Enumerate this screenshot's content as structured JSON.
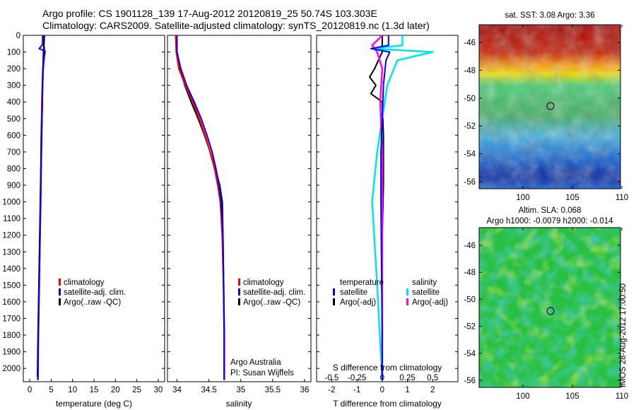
{
  "header": {
    "line1": "Argo profile: CS 1901128_139 17-Aug-2012 20120819_25 50.74S 103.303E",
    "line2": "Climatology: CARS2009. Satellite-adjusted climatology: synTS_20120819.nc (1.3d later)"
  },
  "colors": {
    "climatology": "#ff0000",
    "satellite": "#0000ff",
    "argo": "#000000",
    "satellite_s": "#00e5e5",
    "argo_s": "#ff00ff"
  },
  "depth_ticks": [
    "0",
    "100",
    "200",
    "300",
    "400",
    "500",
    "600",
    "700",
    "800",
    "900",
    "1000",
    "1100",
    "1200",
    "1300",
    "1400",
    "1500",
    "1600",
    "1700",
    "1800",
    "1900",
    "2000"
  ],
  "panels": {
    "temperature": {
      "xlabel": "temperature (deg C)",
      "xticks": [
        "0",
        "5",
        "10",
        "15",
        "20",
        "25",
        "30"
      ],
      "legend": [
        "climatology",
        "satellite-adj. clim.",
        "Argo(..raw -QC)"
      ]
    },
    "salinity": {
      "xlabel": "salinity",
      "xticks": [
        "34",
        "34.5",
        "35",
        "35.5",
        "36"
      ],
      "legend": [
        "climatology",
        "satellite-adj. clim.",
        "Argo(..raw -QC)"
      ],
      "credit1": "Argo Australia",
      "credit2": "PI: Susan Wijffels"
    },
    "difference": {
      "xlabel": "T difference from climatology",
      "xticks": [
        "-2",
        "-1",
        "0",
        "1",
        "2"
      ],
      "s_label": "S difference from climatology",
      "s_ticks": [
        "-0.5",
        "-0.25",
        "0",
        "0.25",
        "0.5"
      ],
      "legend_t_head": "temperature",
      "legend_s_head": "salinity",
      "legend_t": [
        "satellite",
        "Argo(-adj)"
      ],
      "legend_s": [
        "satellite",
        "Argo(-adj)"
      ]
    }
  },
  "maps": {
    "sst_title": "sat. SST: 3.08 Argo: 3.36",
    "sla_title1": "Altim. SLA: 0.068",
    "sla_title2": "Argo h1000: -0.0079 h2000: -0.014",
    "yticks": [
      "-46",
      "-48",
      "-50",
      "-52",
      "-54",
      "-56"
    ],
    "xticks": [
      "100",
      "105",
      "110"
    ]
  },
  "stamp": "IMOS 28-Aug-2012 17:00:50",
  "chart_data": {
    "type": "line",
    "ylim": [
      0,
      2080
    ],
    "temperature": {
      "xlim": [
        -1.5,
        31.5
      ],
      "climatology": [
        [
          3.4,
          0
        ],
        [
          3.3,
          60
        ],
        [
          3.5,
          100
        ],
        [
          3.1,
          200
        ],
        [
          2.9,
          350
        ],
        [
          2.7,
          600
        ],
        [
          2.6,
          900
        ],
        [
          2.4,
          1200
        ],
        [
          2.2,
          1500
        ],
        [
          2.0,
          1800
        ],
        [
          1.9,
          2070
        ]
      ],
      "satellite": [
        [
          3.0,
          0
        ],
        [
          3.0,
          55
        ],
        [
          2.2,
          80
        ],
        [
          3.6,
          95
        ],
        [
          3.2,
          150
        ],
        [
          3.0,
          300
        ],
        [
          2.8,
          600
        ],
        [
          2.6,
          900
        ],
        [
          2.4,
          1200
        ],
        [
          2.2,
          1500
        ],
        [
          2.0,
          1800
        ],
        [
          1.9,
          2070
        ]
      ],
      "argo": [
        [
          3.4,
          0
        ],
        [
          3.2,
          100
        ],
        [
          3.0,
          250
        ],
        [
          2.9,
          450
        ],
        [
          2.7,
          650
        ],
        [
          2.5,
          950
        ],
        [
          2.3,
          1250
        ],
        [
          2.1,
          1550
        ],
        [
          1.9,
          1850
        ],
        [
          1.8,
          2050
        ]
      ]
    },
    "salinity": {
      "xlim": [
        33.85,
        36.1
      ],
      "climatology": [
        [
          33.98,
          0
        ],
        [
          33.99,
          100
        ],
        [
          34.03,
          200
        ],
        [
          34.13,
          300
        ],
        [
          34.25,
          400
        ],
        [
          34.35,
          500
        ],
        [
          34.44,
          600
        ],
        [
          34.52,
          700
        ],
        [
          34.59,
          800
        ],
        [
          34.64,
          900
        ],
        [
          34.68,
          1000
        ],
        [
          34.71,
          1200
        ],
        [
          34.73,
          1500
        ],
        [
          34.74,
          1800
        ],
        [
          34.74,
          2070
        ]
      ],
      "satellite": [
        [
          34.0,
          0
        ],
        [
          34.0,
          100
        ],
        [
          34.06,
          200
        ],
        [
          34.15,
          300
        ],
        [
          34.27,
          400
        ],
        [
          34.38,
          500
        ],
        [
          34.47,
          600
        ],
        [
          34.55,
          700
        ],
        [
          34.61,
          800
        ],
        [
          34.66,
          900
        ],
        [
          34.69,
          1000
        ],
        [
          34.72,
          1200
        ],
        [
          34.73,
          1500
        ],
        [
          34.74,
          1800
        ],
        [
          34.74,
          2070
        ]
      ],
      "argo": [
        [
          33.98,
          0
        ],
        [
          34.0,
          100
        ],
        [
          34.05,
          200
        ],
        [
          34.12,
          300
        ],
        [
          34.22,
          400
        ],
        [
          34.33,
          500
        ],
        [
          34.43,
          600
        ],
        [
          34.52,
          700
        ],
        [
          34.6,
          800
        ],
        [
          34.67,
          900
        ],
        [
          34.71,
          1000
        ],
        [
          34.72,
          1200
        ],
        [
          34.73,
          1500
        ],
        [
          34.74,
          1800
        ],
        [
          34.74,
          2050
        ]
      ]
    },
    "difference": {
      "xlim": [
        -2.6,
        3.0
      ],
      "t_satellite": [
        [
          0.25,
          0
        ],
        [
          0.25,
          60
        ],
        [
          -0.45,
          80
        ],
        [
          0.3,
          100
        ],
        [
          0.15,
          150
        ],
        [
          0.05,
          300
        ],
        [
          0.0,
          500
        ],
        [
          -0.05,
          700
        ],
        [
          -0.05,
          1000
        ],
        [
          -0.02,
          1500
        ],
        [
          0.0,
          1800
        ],
        [
          0.0,
          2070
        ]
      ],
      "t_argo": [
        [
          0.0,
          0
        ],
        [
          0.0,
          100
        ],
        [
          -0.15,
          150
        ],
        [
          -0.3,
          200
        ],
        [
          -0.5,
          250
        ],
        [
          -0.25,
          300
        ],
        [
          -0.45,
          350
        ],
        [
          0.0,
          400
        ],
        [
          0.05,
          600
        ],
        [
          0.05,
          900
        ],
        [
          0.0,
          1200
        ],
        [
          0.0,
          1500
        ],
        [
          0.0,
          2050
        ]
      ],
      "s_satellite": [
        [
          0.2,
          0
        ],
        [
          0.2,
          60
        ],
        [
          -0.1,
          80
        ],
        [
          0.5,
          100
        ],
        [
          0.15,
          150
        ],
        [
          0.05,
          300
        ],
        [
          0.0,
          500
        ],
        [
          -0.05,
          700
        ],
        [
          -0.1,
          1000
        ],
        [
          -0.05,
          1500
        ],
        [
          0.0,
          2070
        ]
      ],
      "s_argo": [
        [
          0.0,
          0
        ],
        [
          -0.1,
          60
        ],
        [
          -0.05,
          100
        ],
        [
          0.0,
          200
        ],
        [
          -0.02,
          400
        ],
        [
          0.0,
          700
        ],
        [
          0.0,
          1000
        ],
        [
          0.0,
          1500
        ],
        [
          0.0,
          2050
        ]
      ]
    }
  }
}
